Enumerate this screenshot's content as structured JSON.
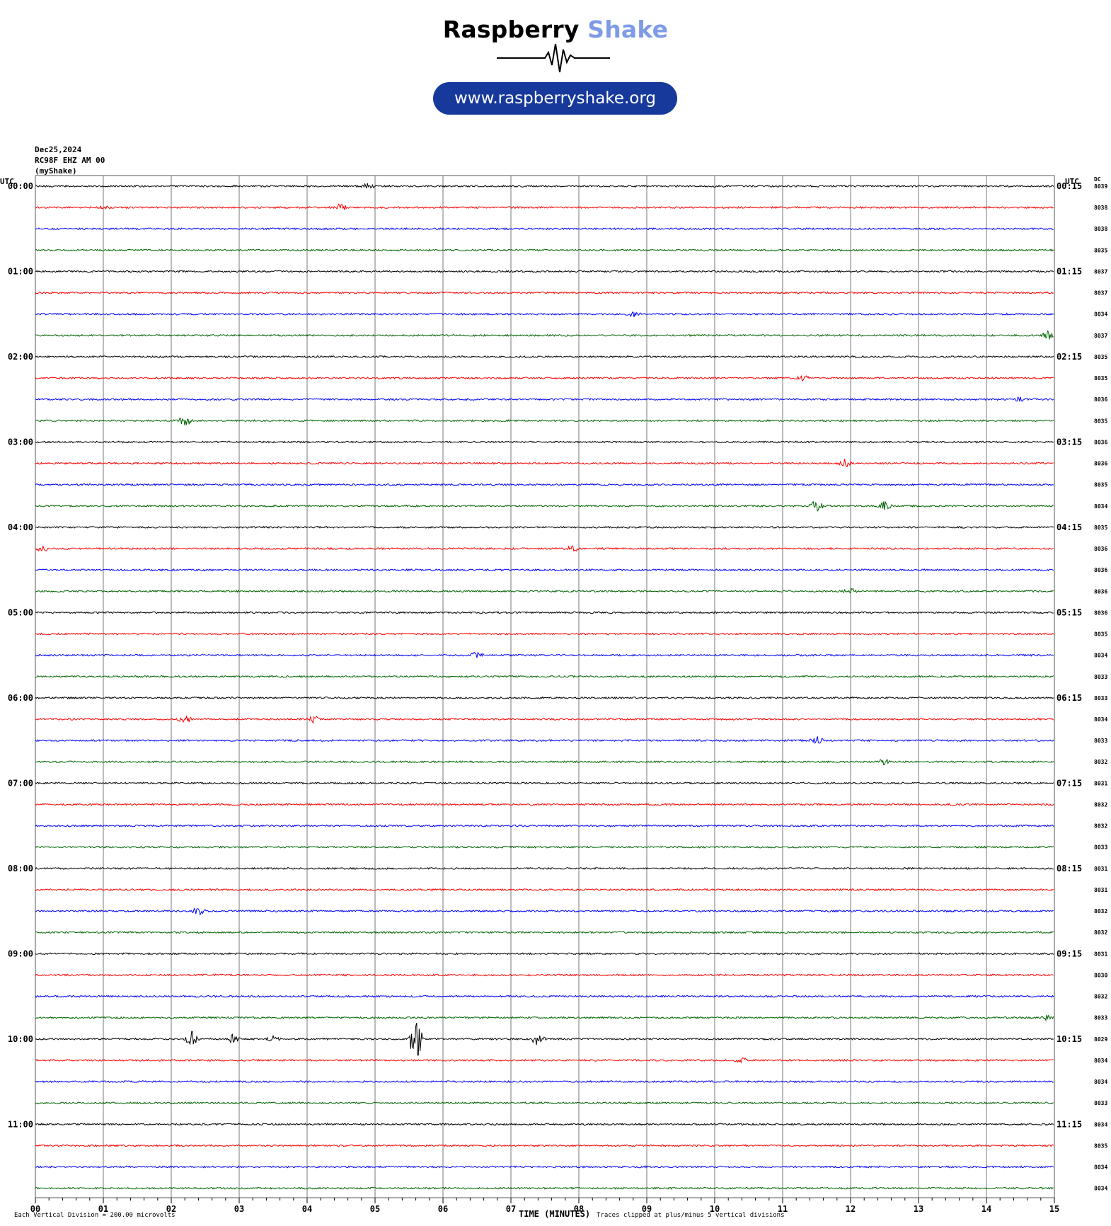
{
  "header": {
    "brand_word1": "Raspberry",
    "brand_word2": "Shake",
    "url": "www.raspberryshake.org",
    "colors": {
      "brand_black": "#000000",
      "brand_blue": "#7f9be6",
      "pill": "#17399c"
    }
  },
  "meta": {
    "date": "Dec25,2024",
    "station": "RC98F EHZ AM 00",
    "source": "(myShake)"
  },
  "footer": {
    "division": "Each Vertical Division =  200.00 microvolts",
    "xlabel": "TIME (MINUTES)",
    "clip": "Traces clipped at plus/minus 5 vertical divisions"
  },
  "chart_data": {
    "type": "line",
    "title": "",
    "xlabel": "TIME (MINUTES)",
    "xlim": [
      0,
      15
    ],
    "x_ticks": [
      "00",
      "01",
      "02",
      "03",
      "04",
      "05",
      "06",
      "07",
      "08",
      "09",
      "10",
      "11",
      "12",
      "13",
      "14",
      "15"
    ],
    "grid": true,
    "left_axis_label": "UTC",
    "right_axis_label": "UTC",
    "dc_label": "DC",
    "trace_colors": [
      "#000000",
      "#ff0000",
      "#0000ff",
      "#006400"
    ],
    "left_hour_labels": [
      "00:00",
      "01:00",
      "02:00",
      "03:00",
      "04:00",
      "05:00",
      "06:00",
      "07:00",
      "08:00",
      "09:00",
      "10:00",
      "11:00"
    ],
    "right_hour_labels": [
      "00:15",
      "01:15",
      "02:15",
      "03:15",
      "04:15",
      "05:15",
      "06:15",
      "07:15",
      "08:15",
      "09:15",
      "10:15",
      "11:15"
    ],
    "dc_values": [
      "8039",
      "8038",
      "8038",
      "8035",
      "8037",
      "8037",
      "8034",
      "8037",
      "8035",
      "8035",
      "8036",
      "8035",
      "8036",
      "8036",
      "8035",
      "8034",
      "8035",
      "8036",
      "8036",
      "8036",
      "8036",
      "8035",
      "8034",
      "8033",
      "8033",
      "8034",
      "8033",
      "8032",
      "8031",
      "8032",
      "8032",
      "8033",
      "8031",
      "8031",
      "8032",
      "8032",
      "8031",
      "8030",
      "8032",
      "8033",
      "8029",
      "8034",
      "8034",
      "8033",
      "8034",
      "8035",
      "8034",
      "8034"
    ],
    "events": [
      {
        "trace": 0,
        "minute": 4.9,
        "amplitude": 0.5
      },
      {
        "trace": 1,
        "minute": 1.0,
        "amplitude": 0.6
      },
      {
        "trace": 1,
        "minute": 4.5,
        "amplitude": 0.9
      },
      {
        "trace": 6,
        "minute": 8.8,
        "amplitude": 0.5
      },
      {
        "trace": 7,
        "minute": 14.9,
        "amplitude": 1.0
      },
      {
        "trace": 9,
        "minute": 11.3,
        "amplitude": 0.5
      },
      {
        "trace": 10,
        "minute": 14.5,
        "amplitude": 0.5
      },
      {
        "trace": 11,
        "minute": 2.2,
        "amplitude": 1.2
      },
      {
        "trace": 13,
        "minute": 11.9,
        "amplitude": 1.3
      },
      {
        "trace": 15,
        "minute": 11.5,
        "amplitude": 1.2
      },
      {
        "trace": 15,
        "minute": 12.5,
        "amplitude": 0.9
      },
      {
        "trace": 17,
        "minute": 0.1,
        "amplitude": 0.7
      },
      {
        "trace": 17,
        "minute": 7.9,
        "amplitude": 0.8
      },
      {
        "trace": 19,
        "minute": 12.0,
        "amplitude": 0.7
      },
      {
        "trace": 22,
        "minute": 6.5,
        "amplitude": 0.8
      },
      {
        "trace": 25,
        "minute": 2.2,
        "amplitude": 0.8
      },
      {
        "trace": 25,
        "minute": 4.1,
        "amplitude": 0.7
      },
      {
        "trace": 26,
        "minute": 11.5,
        "amplitude": 0.8
      },
      {
        "trace": 27,
        "minute": 12.5,
        "amplitude": 0.6
      },
      {
        "trace": 34,
        "minute": 2.4,
        "amplitude": 0.8
      },
      {
        "trace": 39,
        "minute": 14.9,
        "amplitude": 0.6
      },
      {
        "trace": 40,
        "minute": 2.3,
        "amplitude": 1.6
      },
      {
        "trace": 40,
        "minute": 2.9,
        "amplitude": 0.8
      },
      {
        "trace": 40,
        "minute": 3.5,
        "amplitude": 0.6
      },
      {
        "trace": 40,
        "minute": 5.6,
        "amplitude": 5.0
      },
      {
        "trace": 40,
        "minute": 7.4,
        "amplitude": 1.4
      },
      {
        "trace": 41,
        "minute": 10.4,
        "amplitude": 0.4
      }
    ]
  }
}
